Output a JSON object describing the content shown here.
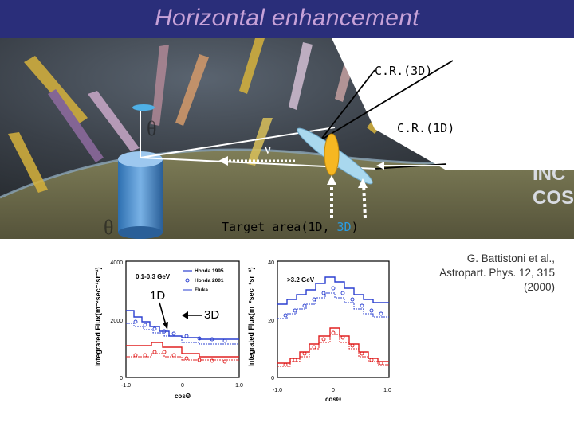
{
  "slide": {
    "title": "Horizontal enhancement"
  },
  "photo": {
    "labels": {
      "cr3d": "C.R.(3D)",
      "cr1d": "C.R.(1D)",
      "nu": "ν",
      "target_prefix": "Target area(",
      "target_1d": "1D",
      "target_sep": ", ",
      "target_3d": "3D",
      "target_suffix": ")",
      "background_text_1": "INC",
      "background_text_2": "COSM",
      "theta": "θ"
    }
  },
  "plots": {
    "callout_1d": "1D",
    "callout_3d": "3D",
    "left": {
      "ylabel": "Integrated Flux(m⁻²sec⁻¹sr⁻¹)",
      "xlabel": "cosΘ",
      "energy_label": "0.1-0.3 GeV",
      "legend": [
        "Honda 1995",
        "Honda 2001",
        "Fluka"
      ],
      "yticks": [
        "4000",
        "2000",
        "0"
      ],
      "xticks": [
        "-1.0",
        "0",
        "1.0"
      ]
    },
    "right": {
      "ylabel": "Integrated Flux(m⁻²sec⁻¹sr⁻¹)",
      "xlabel": "cosΘ",
      "energy_label": ">3.2 GeV",
      "yticks": [
        "40",
        "20",
        "0"
      ],
      "xticks": [
        "-1.0",
        "0",
        "1.0"
      ]
    }
  },
  "citation": {
    "line1": "G. Battistoni et al.,",
    "line2": "Astropart. Phys. 12, 315",
    "line3": "(2000)"
  },
  "colors": {
    "title_bar": "#2a2e7a",
    "title_text": "#c7a2d8",
    "blue_curve": "#2a3fd0",
    "red_curve": "#e02020",
    "target_3d": "#2a9be0"
  }
}
